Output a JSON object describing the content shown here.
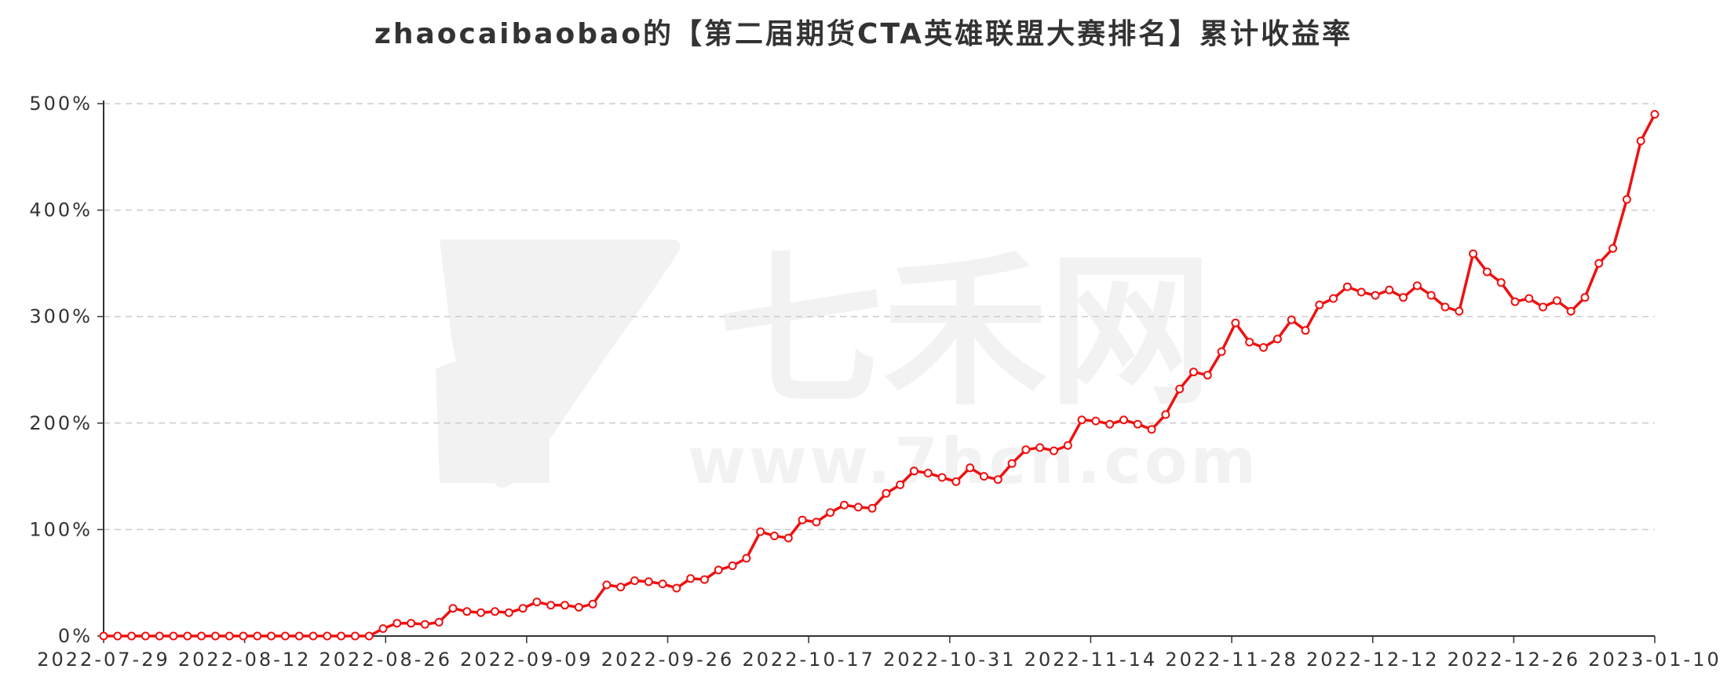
{
  "chart_data": {
    "type": "line",
    "title": "zhaocaibaobao的【第二届期货CTA英雄联盟大赛排名】累计收益率",
    "xlabel": "",
    "ylabel": "",
    "y_unit": "%",
    "ylim": [
      0,
      500
    ],
    "y_ticks": [
      0,
      100,
      200,
      300,
      400,
      500
    ],
    "y_tick_labels": [
      "0%",
      "100%",
      "200%",
      "300%",
      "400%",
      "500%"
    ],
    "x_range": [
      "2022-07-29",
      "2023-01-10"
    ],
    "x_tick_labels": [
      "2022-07-29",
      "2022-08-12",
      "2022-08-26",
      "2022-09-09",
      "2022-09-26",
      "2022-10-17",
      "2022-10-31",
      "2022-11-14",
      "2022-11-28",
      "2022-12-12",
      "2022-12-26",
      "2023-01-10"
    ],
    "grid": "horizontal-dashed",
    "line_color": "#ee1111",
    "series": [
      {
        "values": [
          0,
          0,
          0,
          0,
          0,
          0,
          0,
          0,
          0,
          0,
          0,
          0,
          0,
          0,
          0,
          0,
          0,
          0,
          0,
          0,
          7,
          12,
          12,
          11,
          13,
          26,
          23,
          22,
          23,
          22,
          26,
          32,
          29,
          29,
          27,
          30,
          48,
          46,
          52,
          51,
          49,
          45,
          54,
          53,
          62,
          66,
          73,
          98,
          94,
          92,
          109,
          107,
          116,
          123,
          121,
          120,
          134,
          142,
          155,
          153,
          149,
          145,
          158,
          150,
          147,
          162,
          175,
          177,
          174,
          179,
          203,
          202,
          199,
          203,
          199,
          194,
          208,
          232,
          248,
          245,
          267,
          294,
          276,
          271,
          279,
          297,
          287,
          311,
          317,
          328,
          323,
          320,
          325,
          318,
          329,
          320,
          309,
          305,
          359,
          342,
          332,
          314,
          317,
          309,
          315,
          305,
          318,
          350,
          364,
          410,
          465,
          490
        ]
      }
    ]
  },
  "watermark": {
    "brand": "七禾网",
    "url": "www.7hcn.com"
  }
}
